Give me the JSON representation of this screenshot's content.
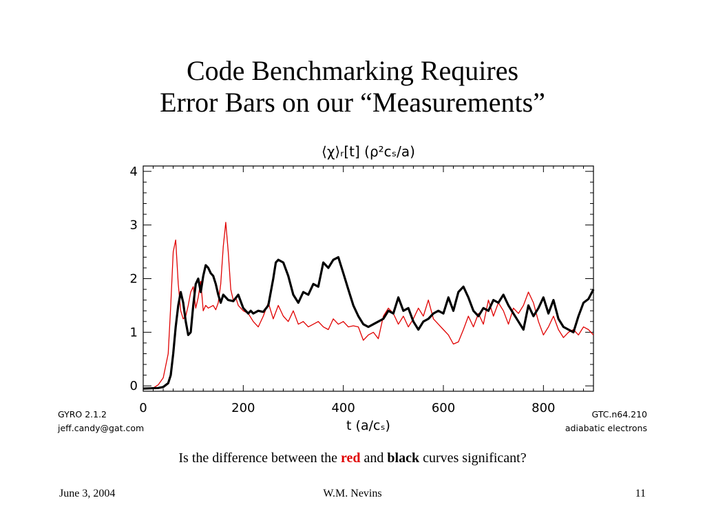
{
  "slide": {
    "title_line1": "Code Benchmarking Requires",
    "title_line2": "Error Bars on our “Measurements”",
    "question_before": "Is the difference between the ",
    "question_red": "red",
    "question_mid": " and ",
    "question_black": "black",
    "question_after": " curves significant?",
    "footer_date": "June 3, 2004",
    "footer_author": "W.M. Nevins",
    "footer_page": "11"
  },
  "labels": {
    "left_line1": "GYRO 2.1.2",
    "left_line2": "jeff.candy@gat.com",
    "right_line1": "GTC.n64.210",
    "right_line2": "adiabatic electrons"
  },
  "colors": {
    "red_series": "#e00000",
    "black_series": "#000000"
  },
  "chart_data": {
    "type": "line",
    "title": "⟨χ⟩ᵣ[t] (ρ²cₛ/a)",
    "xlabel": "t (a/cₛ)",
    "ylabel": "",
    "xlim": [
      0,
      900
    ],
    "ylim": [
      -0.1,
      4.1
    ],
    "xticks": [
      0,
      200,
      400,
      600,
      800
    ],
    "yticks": [
      0,
      1,
      2,
      3,
      4
    ],
    "grid": false,
    "series": [
      {
        "color": "red",
        "x": [
          0,
          20,
          30,
          40,
          50,
          55,
          60,
          65,
          70,
          75,
          80,
          85,
          90,
          95,
          100,
          105,
          110,
          115,
          120,
          125,
          130,
          140,
          145,
          150,
          155,
          160,
          165,
          170,
          175,
          180,
          185,
          190,
          200,
          210,
          220,
          230,
          240,
          250,
          260,
          270,
          280,
          290,
          300,
          310,
          320,
          330,
          340,
          350,
          360,
          370,
          380,
          390,
          400,
          410,
          420,
          430,
          440,
          450,
          460,
          470,
          480,
          490,
          500,
          510,
          520,
          530,
          540,
          550,
          560,
          570,
          580,
          590,
          600,
          610,
          620,
          630,
          640,
          650,
          660,
          670,
          680,
          690,
          700,
          710,
          720,
          730,
          740,
          750,
          760,
          770,
          780,
          790,
          800,
          810,
          820,
          830,
          840,
          850,
          860,
          870,
          880,
          890,
          900
        ],
        "y": [
          -0.05,
          -0.04,
          0.02,
          0.15,
          0.6,
          1.5,
          2.5,
          2.72,
          1.9,
          1.4,
          1.25,
          1.3,
          1.5,
          1.75,
          1.85,
          1.45,
          1.65,
          1.95,
          1.4,
          1.5,
          1.45,
          1.5,
          1.42,
          1.55,
          1.9,
          2.6,
          3.05,
          2.5,
          1.8,
          1.6,
          1.65,
          1.5,
          1.4,
          1.35,
          1.2,
          1.1,
          1.3,
          1.55,
          1.25,
          1.5,
          1.3,
          1.2,
          1.4,
          1.15,
          1.2,
          1.1,
          1.15,
          1.2,
          1.1,
          1.05,
          1.25,
          1.15,
          1.2,
          1.1,
          1.12,
          1.1,
          0.85,
          0.95,
          1.0,
          0.88,
          1.3,
          1.45,
          1.35,
          1.15,
          1.3,
          1.1,
          1.25,
          1.45,
          1.3,
          1.6,
          1.25,
          1.15,
          1.05,
          0.95,
          0.78,
          0.82,
          1.05,
          1.3,
          1.1,
          1.35,
          1.15,
          1.6,
          1.3,
          1.55,
          1.4,
          1.15,
          1.45,
          1.35,
          1.5,
          1.75,
          1.55,
          1.2,
          0.95,
          1.1,
          1.3,
          1.05,
          0.9,
          1.0,
          1.05,
          0.95,
          1.1,
          1.05,
          0.95
        ]
      },
      {
        "color": "black",
        "x": [
          0,
          30,
          40,
          50,
          55,
          60,
          65,
          70,
          75,
          80,
          85,
          90,
          95,
          100,
          105,
          110,
          115,
          120,
          125,
          130,
          135,
          140,
          145,
          150,
          155,
          160,
          170,
          180,
          190,
          200,
          210,
          215,
          220,
          230,
          240,
          250,
          260,
          265,
          270,
          280,
          290,
          300,
          310,
          320,
          330,
          340,
          350,
          360,
          370,
          380,
          390,
          400,
          410,
          420,
          430,
          440,
          450,
          460,
          470,
          480,
          490,
          500,
          510,
          520,
          530,
          540,
          550,
          560,
          570,
          580,
          590,
          600,
          610,
          620,
          630,
          640,
          650,
          660,
          670,
          680,
          690,
          700,
          710,
          720,
          730,
          740,
          750,
          760,
          770,
          780,
          790,
          800,
          810,
          820,
          830,
          840,
          850,
          860,
          870,
          880,
          890,
          900
        ],
        "y": [
          -0.05,
          -0.04,
          -0.02,
          0.05,
          0.2,
          0.6,
          1.1,
          1.5,
          1.75,
          1.55,
          1.2,
          0.95,
          1.0,
          1.5,
          1.9,
          2.0,
          1.75,
          2.05,
          2.25,
          2.2,
          2.1,
          2.05,
          1.9,
          1.7,
          1.55,
          1.7,
          1.6,
          1.58,
          1.7,
          1.45,
          1.35,
          1.4,
          1.35,
          1.4,
          1.38,
          1.5,
          2.0,
          2.3,
          2.35,
          2.3,
          2.05,
          1.7,
          1.55,
          1.75,
          1.7,
          1.9,
          1.85,
          2.3,
          2.2,
          2.35,
          2.4,
          2.1,
          1.8,
          1.5,
          1.3,
          1.15,
          1.1,
          1.15,
          1.2,
          1.25,
          1.4,
          1.35,
          1.65,
          1.4,
          1.45,
          1.2,
          1.05,
          1.2,
          1.25,
          1.35,
          1.4,
          1.35,
          1.65,
          1.4,
          1.75,
          1.85,
          1.65,
          1.4,
          1.3,
          1.45,
          1.4,
          1.6,
          1.55,
          1.7,
          1.5,
          1.35,
          1.2,
          1.05,
          1.5,
          1.3,
          1.45,
          1.65,
          1.35,
          1.6,
          1.25,
          1.1,
          1.05,
          1.0,
          1.3,
          1.55,
          1.62,
          1.8
        ]
      }
    ]
  }
}
